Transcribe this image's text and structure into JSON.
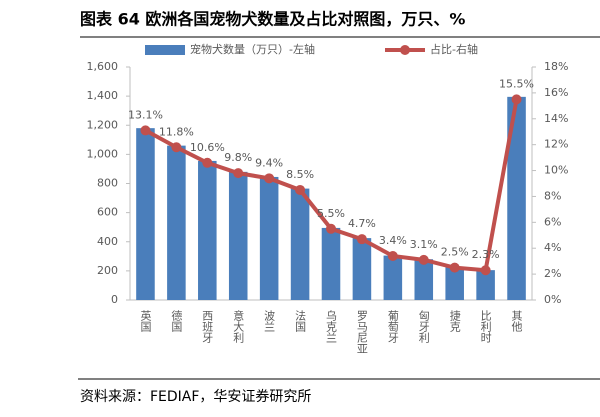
{
  "chart_data": {
    "type": "bar-line",
    "title": "图表 64 欧洲各国宠物犬数量及占比对照图，万只、%",
    "source": "资料来源：FEDIAF，华安证券研究所",
    "categories": [
      "英国",
      "德国",
      "西班牙",
      "意大利",
      "波兰",
      "法国",
      "乌克兰",
      "罗马尼亚",
      "葡萄牙",
      "匈牙利",
      "捷克",
      "比利时",
      "其他"
    ],
    "series": [
      {
        "name": "宠物犬数量（万只）-左轴",
        "color": "#4a7ebb",
        "type": "bar",
        "values": [
          1180,
          1060,
          955,
          880,
          845,
          765,
          495,
          425,
          305,
          280,
          225,
          205,
          1395
        ]
      },
      {
        "name": "占比-右轴",
        "color": "#c0504d",
        "type": "line",
        "axis": "y2",
        "values": [
          13.1,
          11.8,
          10.6,
          9.8,
          9.4,
          8.5,
          5.5,
          4.7,
          3.4,
          3.1,
          2.5,
          2.3,
          15.5
        ],
        "value_labels": [
          "13.1%",
          "11.8%",
          "10.6%",
          "9.8%",
          "9.4%",
          "8.5%",
          "5.5%",
          "4.7%",
          "3.4%",
          "3.1%",
          "2.5%",
          "2.3%",
          "15.5%"
        ]
      }
    ],
    "ylim": [
      0,
      1600
    ],
    "yticks": [
      0,
      200,
      400,
      600,
      800,
      {
        "value": 1000,
        "label": "1,000"
      },
      {
        "value": 1200,
        "label": "1,200"
      },
      {
        "value": 1400,
        "label": "1,400"
      },
      {
        "value": 1600,
        "label": "1,600"
      }
    ],
    "y2lim": [
      0,
      18
    ],
    "y2ticks": [
      {
        "value": 0,
        "label": "0%"
      },
      {
        "value": 2,
        "label": "2%"
      },
      {
        "value": 4,
        "label": "4%"
      },
      {
        "value": 6,
        "label": "6%"
      },
      {
        "value": 8,
        "label": "8%"
      },
      {
        "value": 10,
        "label": "10%"
      },
      {
        "value": 12,
        "label": "12%"
      },
      {
        "value": 14,
        "label": "14%"
      },
      {
        "value": 16,
        "label": "16%"
      },
      {
        "value": 18,
        "label": "18%"
      }
    ]
  }
}
